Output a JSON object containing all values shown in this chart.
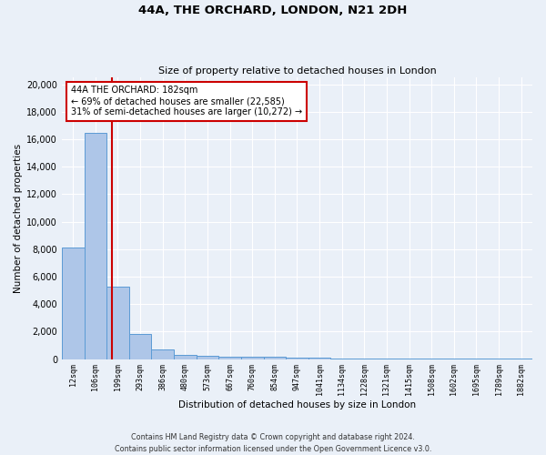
{
  "title1": "44A, THE ORCHARD, LONDON, N21 2DH",
  "title2": "Size of property relative to detached houses in London",
  "xlabel": "Distribution of detached houses by size in London",
  "ylabel": "Number of detached properties",
  "bar_categories": [
    "12sqm",
    "106sqm",
    "199sqm",
    "293sqm",
    "386sqm",
    "480sqm",
    "573sqm",
    "667sqm",
    "760sqm",
    "854sqm",
    "947sqm",
    "1041sqm",
    "1134sqm",
    "1228sqm",
    "1321sqm",
    "1415sqm",
    "1508sqm",
    "1602sqm",
    "1695sqm",
    "1789sqm",
    "1882sqm"
  ],
  "bar_values": [
    8100,
    16500,
    5300,
    1850,
    700,
    320,
    230,
    200,
    200,
    150,
    100,
    80,
    60,
    50,
    40,
    30,
    25,
    20,
    15,
    12,
    10
  ],
  "bar_color": "#aec6e8",
  "bar_edge_color": "#5b9bd5",
  "background_color": "#eaf0f8",
  "grid_color": "#ffffff",
  "property_line_x": 1.72,
  "property_line_color": "#cc0000",
  "annotation_text": "44A THE ORCHARD: 182sqm\n← 69% of detached houses are smaller (22,585)\n31% of semi-detached houses are larger (10,272) →",
  "annotation_box_color": "#cc0000",
  "ylim": [
    0,
    20500
  ],
  "yticks": [
    0,
    2000,
    4000,
    6000,
    8000,
    10000,
    12000,
    14000,
    16000,
    18000,
    20000
  ],
  "footnote": "Contains HM Land Registry data © Crown copyright and database right 2024.\nContains public sector information licensed under the Open Government Licence v3.0."
}
